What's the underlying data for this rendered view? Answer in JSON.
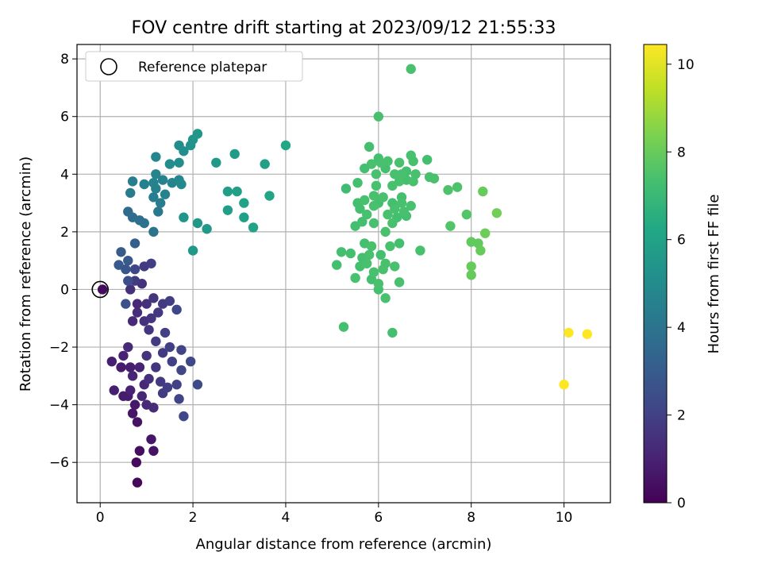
{
  "chart_data": {
    "type": "scatter",
    "title": "FOV centre drift starting at 2023/09/12 21:55:33",
    "xlabel": "Angular distance from reference (arcmin)",
    "ylabel": "Rotation from reference (arcmin)",
    "xlim": [
      -0.5,
      11.0
    ],
    "ylim": [
      -7.4,
      8.5
    ],
    "xticks": [
      0,
      2,
      4,
      6,
      8,
      10
    ],
    "xtick_labels": [
      "0",
      "2",
      "4",
      "6",
      "8",
      "10"
    ],
    "yticks": [
      -6,
      -4,
      -2,
      0,
      2,
      4,
      6,
      8
    ],
    "ytick_labels": [
      "−6",
      "−4",
      "−2",
      "0",
      "2",
      "4",
      "6",
      "8"
    ],
    "grid": true,
    "legend": {
      "placement": "top-left",
      "entries": [
        "Reference platepar"
      ]
    },
    "reference_point": {
      "x": 0,
      "y": 0
    },
    "colorbar": {
      "label": "Hours from first FF file",
      "range": [
        0,
        10.45
      ],
      "ticks": [
        0,
        2,
        4,
        6,
        8,
        10
      ],
      "tick_labels": [
        "0",
        "2",
        "4",
        "6",
        "8",
        "10"
      ],
      "colormap": "viridis"
    },
    "points": [
      {
        "x": 0.05,
        "y": 0.0,
        "c": 0.3
      },
      {
        "x": 0.8,
        "y": -6.7,
        "c": 0.2
      },
      {
        "x": 0.78,
        "y": -6.0,
        "c": 0.3
      },
      {
        "x": 0.85,
        "y": -5.6,
        "c": 0.4
      },
      {
        "x": 1.15,
        "y": -5.6,
        "c": 0.5
      },
      {
        "x": 1.1,
        "y": -5.2,
        "c": 0.6
      },
      {
        "x": 0.8,
        "y": -4.6,
        "c": 0.5
      },
      {
        "x": 0.7,
        "y": -4.3,
        "c": 0.6
      },
      {
        "x": 0.75,
        "y": -4.0,
        "c": 0.7
      },
      {
        "x": 0.6,
        "y": -3.7,
        "c": 0.8
      },
      {
        "x": 0.3,
        "y": -3.5,
        "c": 0.9
      },
      {
        "x": 0.5,
        "y": -3.7,
        "c": 0.8
      },
      {
        "x": 0.65,
        "y": -3.5,
        "c": 1.0
      },
      {
        "x": 0.9,
        "y": -3.7,
        "c": 1.1
      },
      {
        "x": 1.0,
        "y": -4.0,
        "c": 1.2
      },
      {
        "x": 1.15,
        "y": -4.1,
        "c": 1.3
      },
      {
        "x": 0.95,
        "y": -3.3,
        "c": 1.2
      },
      {
        "x": 1.05,
        "y": -3.1,
        "c": 1.4
      },
      {
        "x": 0.7,
        "y": -3.0,
        "c": 1.1
      },
      {
        "x": 0.85,
        "y": -2.7,
        "c": 1.0
      },
      {
        "x": 0.65,
        "y": -2.7,
        "c": 0.9
      },
      {
        "x": 0.45,
        "y": -2.7,
        "c": 0.8
      },
      {
        "x": 0.25,
        "y": -2.5,
        "c": 0.9
      },
      {
        "x": 0.5,
        "y": -2.3,
        "c": 1.0
      },
      {
        "x": 0.6,
        "y": -2.0,
        "c": 1.2
      },
      {
        "x": 1.0,
        "y": -2.3,
        "c": 1.5
      },
      {
        "x": 1.2,
        "y": -2.7,
        "c": 1.6
      },
      {
        "x": 1.3,
        "y": -3.2,
        "c": 1.7
      },
      {
        "x": 1.35,
        "y": -3.6,
        "c": 1.8
      },
      {
        "x": 1.45,
        "y": -3.4,
        "c": 1.9
      },
      {
        "x": 1.65,
        "y": -3.3,
        "c": 2.0
      },
      {
        "x": 1.7,
        "y": -3.8,
        "c": 2.1
      },
      {
        "x": 1.8,
        "y": -4.4,
        "c": 2.2
      },
      {
        "x": 2.1,
        "y": -3.3,
        "c": 2.4
      },
      {
        "x": 1.75,
        "y": -2.8,
        "c": 2.2
      },
      {
        "x": 1.55,
        "y": -2.5,
        "c": 2.0
      },
      {
        "x": 1.35,
        "y": -2.2,
        "c": 1.8
      },
      {
        "x": 1.5,
        "y": -2.0,
        "c": 1.9
      },
      {
        "x": 1.75,
        "y": -2.1,
        "c": 2.1
      },
      {
        "x": 1.95,
        "y": -2.5,
        "c": 2.3
      },
      {
        "x": 1.4,
        "y": -1.5,
        "c": 2.0
      },
      {
        "x": 1.2,
        "y": -1.8,
        "c": 1.8
      },
      {
        "x": 1.05,
        "y": -1.4,
        "c": 1.6
      },
      {
        "x": 0.95,
        "y": -1.1,
        "c": 1.5
      },
      {
        "x": 0.8,
        "y": -0.8,
        "c": 1.3
      },
      {
        "x": 0.7,
        "y": -1.1,
        "c": 1.2
      },
      {
        "x": 0.8,
        "y": -0.5,
        "c": 1.2
      },
      {
        "x": 1.0,
        "y": -0.5,
        "c": 1.4
      },
      {
        "x": 1.15,
        "y": -0.3,
        "c": 1.6
      },
      {
        "x": 1.35,
        "y": -0.5,
        "c": 1.8
      },
      {
        "x": 1.5,
        "y": -0.4,
        "c": 1.9
      },
      {
        "x": 1.65,
        "y": -0.7,
        "c": 2.2
      },
      {
        "x": 1.25,
        "y": -0.8,
        "c": 1.7
      },
      {
        "x": 1.1,
        "y": -1.0,
        "c": 1.6
      },
      {
        "x": 0.55,
        "y": -0.5,
        "c": 2.6
      },
      {
        "x": 0.65,
        "y": 0.0,
        "c": 1.4
      },
      {
        "x": 0.9,
        "y": 0.2,
        "c": 1.5
      },
      {
        "x": 0.75,
        "y": 0.3,
        "c": 1.8
      },
      {
        "x": 0.6,
        "y": 0.3,
        "c": 2.5
      },
      {
        "x": 0.55,
        "y": 0.7,
        "c": 2.8
      },
      {
        "x": 0.4,
        "y": 0.85,
        "c": 2.9
      },
      {
        "x": 0.75,
        "y": 0.7,
        "c": 2.2
      },
      {
        "x": 0.95,
        "y": 0.8,
        "c": 1.8
      },
      {
        "x": 1.1,
        "y": 0.9,
        "c": 1.9
      },
      {
        "x": 0.45,
        "y": 1.3,
        "c": 3.0
      },
      {
        "x": 0.6,
        "y": 1.0,
        "c": 2.9
      },
      {
        "x": 0.75,
        "y": 1.6,
        "c": 3.1
      },
      {
        "x": 0.6,
        "y": 2.7,
        "c": 3.6
      },
      {
        "x": 0.7,
        "y": 2.5,
        "c": 3.7
      },
      {
        "x": 0.85,
        "y": 2.4,
        "c": 3.8
      },
      {
        "x": 0.95,
        "y": 2.3,
        "c": 3.9
      },
      {
        "x": 1.15,
        "y": 2.0,
        "c": 4.0
      },
      {
        "x": 1.25,
        "y": 2.7,
        "c": 4.2
      },
      {
        "x": 1.3,
        "y": 3.0,
        "c": 4.3
      },
      {
        "x": 1.15,
        "y": 3.2,
        "c": 4.4
      },
      {
        "x": 1.2,
        "y": 3.5,
        "c": 4.5
      },
      {
        "x": 1.15,
        "y": 3.7,
        "c": 4.6
      },
      {
        "x": 1.2,
        "y": 4.0,
        "c": 4.7
      },
      {
        "x": 0.65,
        "y": 3.35,
        "c": 4.3
      },
      {
        "x": 0.7,
        "y": 3.75,
        "c": 4.4
      },
      {
        "x": 0.95,
        "y": 3.65,
        "c": 4.5
      },
      {
        "x": 1.35,
        "y": 3.8,
        "c": 4.6
      },
      {
        "x": 1.4,
        "y": 3.3,
        "c": 4.6
      },
      {
        "x": 1.55,
        "y": 3.7,
        "c": 4.7
      },
      {
        "x": 1.7,
        "y": 3.8,
        "c": 4.8
      },
      {
        "x": 1.75,
        "y": 3.65,
        "c": 4.9
      },
      {
        "x": 1.5,
        "y": 4.35,
        "c": 5.0
      },
      {
        "x": 1.7,
        "y": 4.4,
        "c": 5.0
      },
      {
        "x": 1.2,
        "y": 4.6,
        "c": 4.8
      },
      {
        "x": 1.7,
        "y": 5.0,
        "c": 5.1
      },
      {
        "x": 1.8,
        "y": 4.8,
        "c": 5.2
      },
      {
        "x": 1.95,
        "y": 5.0,
        "c": 5.3
      },
      {
        "x": 2.0,
        "y": 5.2,
        "c": 5.4
      },
      {
        "x": 2.1,
        "y": 5.4,
        "c": 5.5
      },
      {
        "x": 1.8,
        "y": 2.5,
        "c": 5.4
      },
      {
        "x": 2.1,
        "y": 2.3,
        "c": 5.5
      },
      {
        "x": 2.3,
        "y": 2.1,
        "c": 5.6
      },
      {
        "x": 2.0,
        "y": 1.35,
        "c": 5.6
      },
      {
        "x": 2.5,
        "y": 4.4,
        "c": 5.6
      },
      {
        "x": 2.9,
        "y": 4.7,
        "c": 5.7
      },
      {
        "x": 2.75,
        "y": 3.4,
        "c": 5.8
      },
      {
        "x": 2.95,
        "y": 3.4,
        "c": 5.9
      },
      {
        "x": 2.75,
        "y": 2.75,
        "c": 5.8
      },
      {
        "x": 3.1,
        "y": 3.0,
        "c": 6.0
      },
      {
        "x": 3.1,
        "y": 2.5,
        "c": 5.9
      },
      {
        "x": 3.3,
        "y": 2.15,
        "c": 6.0
      },
      {
        "x": 3.55,
        "y": 4.35,
        "c": 5.9
      },
      {
        "x": 3.65,
        "y": 3.25,
        "c": 6.1
      },
      {
        "x": 4.0,
        "y": 5.0,
        "c": 6.2
      },
      {
        "x": 5.1,
        "y": 0.85,
        "c": 7.3
      },
      {
        "x": 5.2,
        "y": 1.3,
        "c": 7.3
      },
      {
        "x": 5.4,
        "y": 1.25,
        "c": 7.3
      },
      {
        "x": 5.3,
        "y": 3.5,
        "c": 7.2
      },
      {
        "x": 5.25,
        "y": -1.3,
        "c": 7.3
      },
      {
        "x": 5.5,
        "y": 0.4,
        "c": 7.4
      },
      {
        "x": 5.6,
        "y": 0.8,
        "c": 7.3
      },
      {
        "x": 5.75,
        "y": 0.9,
        "c": 7.4
      },
      {
        "x": 5.65,
        "y": 1.1,
        "c": 7.3
      },
      {
        "x": 5.8,
        "y": 1.2,
        "c": 7.4
      },
      {
        "x": 5.7,
        "y": 1.6,
        "c": 7.3
      },
      {
        "x": 5.85,
        "y": 1.5,
        "c": 7.4
      },
      {
        "x": 5.9,
        "y": 0.6,
        "c": 7.4
      },
      {
        "x": 5.85,
        "y": 0.35,
        "c": 7.3
      },
      {
        "x": 6.0,
        "y": 0.2,
        "c": 7.4
      },
      {
        "x": 6.0,
        "y": 0.0,
        "c": 7.3
      },
      {
        "x": 6.15,
        "y": -0.3,
        "c": 7.4
      },
      {
        "x": 6.3,
        "y": -1.5,
        "c": 7.3
      },
      {
        "x": 6.1,
        "y": 0.7,
        "c": 7.4
      },
      {
        "x": 6.15,
        "y": 0.9,
        "c": 7.4
      },
      {
        "x": 6.35,
        "y": 0.8,
        "c": 7.4
      },
      {
        "x": 6.45,
        "y": 0.25,
        "c": 7.4
      },
      {
        "x": 6.05,
        "y": 1.2,
        "c": 7.3
      },
      {
        "x": 6.25,
        "y": 1.5,
        "c": 7.4
      },
      {
        "x": 6.45,
        "y": 1.6,
        "c": 7.3
      },
      {
        "x": 6.15,
        "y": 2.0,
        "c": 7.4
      },
      {
        "x": 5.5,
        "y": 2.2,
        "c": 7.3
      },
      {
        "x": 5.65,
        "y": 2.35,
        "c": 7.3
      },
      {
        "x": 5.9,
        "y": 2.3,
        "c": 7.4
      },
      {
        "x": 5.75,
        "y": 2.6,
        "c": 7.4
      },
      {
        "x": 5.6,
        "y": 2.8,
        "c": 7.3
      },
      {
        "x": 5.9,
        "y": 2.9,
        "c": 7.4
      },
      {
        "x": 5.55,
        "y": 3.0,
        "c": 7.3
      },
      {
        "x": 5.7,
        "y": 3.1,
        "c": 7.4
      },
      {
        "x": 5.9,
        "y": 3.25,
        "c": 7.4
      },
      {
        "x": 6.0,
        "y": 3.0,
        "c": 7.3
      },
      {
        "x": 6.1,
        "y": 3.2,
        "c": 7.4
      },
      {
        "x": 6.2,
        "y": 2.6,
        "c": 7.4
      },
      {
        "x": 6.35,
        "y": 2.8,
        "c": 7.4
      },
      {
        "x": 6.4,
        "y": 2.5,
        "c": 7.3
      },
      {
        "x": 6.3,
        "y": 2.3,
        "c": 7.4
      },
      {
        "x": 6.55,
        "y": 2.7,
        "c": 7.4
      },
      {
        "x": 6.6,
        "y": 2.55,
        "c": 7.3
      },
      {
        "x": 6.7,
        "y": 2.9,
        "c": 7.4
      },
      {
        "x": 6.5,
        "y": 3.0,
        "c": 7.4
      },
      {
        "x": 6.5,
        "y": 3.2,
        "c": 7.3
      },
      {
        "x": 6.3,
        "y": 3.6,
        "c": 7.4
      },
      {
        "x": 6.45,
        "y": 3.75,
        "c": 7.4
      },
      {
        "x": 6.6,
        "y": 3.8,
        "c": 7.3
      },
      {
        "x": 6.75,
        "y": 3.75,
        "c": 7.4
      },
      {
        "x": 6.8,
        "y": 4.0,
        "c": 7.4
      },
      {
        "x": 6.6,
        "y": 4.1,
        "c": 7.3
      },
      {
        "x": 6.5,
        "y": 4.0,
        "c": 7.4
      },
      {
        "x": 6.35,
        "y": 4.0,
        "c": 7.4
      },
      {
        "x": 6.15,
        "y": 4.2,
        "c": 7.3
      },
      {
        "x": 6.05,
        "y": 4.4,
        "c": 7.4
      },
      {
        "x": 5.85,
        "y": 4.35,
        "c": 7.4
      },
      {
        "x": 5.7,
        "y": 4.2,
        "c": 7.3
      },
      {
        "x": 5.55,
        "y": 3.7,
        "c": 7.3
      },
      {
        "x": 5.95,
        "y": 3.6,
        "c": 7.4
      },
      {
        "x": 5.95,
        "y": 4.0,
        "c": 7.4
      },
      {
        "x": 6.0,
        "y": 4.55,
        "c": 7.3
      },
      {
        "x": 6.2,
        "y": 4.45,
        "c": 7.4
      },
      {
        "x": 6.45,
        "y": 4.4,
        "c": 7.4
      },
      {
        "x": 5.8,
        "y": 4.95,
        "c": 7.3
      },
      {
        "x": 6.7,
        "y": 4.65,
        "c": 7.4
      },
      {
        "x": 6.75,
        "y": 4.45,
        "c": 7.4
      },
      {
        "x": 7.05,
        "y": 4.5,
        "c": 7.3
      },
      {
        "x": 7.1,
        "y": 3.9,
        "c": 7.4
      },
      {
        "x": 7.2,
        "y": 3.85,
        "c": 7.4
      },
      {
        "x": 6.3,
        "y": 3.0,
        "c": 7.3
      },
      {
        "x": 6.0,
        "y": 6.0,
        "c": 7.4
      },
      {
        "x": 6.7,
        "y": 7.65,
        "c": 7.4
      },
      {
        "x": 6.9,
        "y": 1.35,
        "c": 7.4
      },
      {
        "x": 7.5,
        "y": 3.45,
        "c": 7.5
      },
      {
        "x": 7.7,
        "y": 3.55,
        "c": 7.5
      },
      {
        "x": 7.55,
        "y": 2.2,
        "c": 7.6
      },
      {
        "x": 7.9,
        "y": 2.6,
        "c": 7.6
      },
      {
        "x": 8.0,
        "y": 1.65,
        "c": 7.9
      },
      {
        "x": 8.15,
        "y": 1.6,
        "c": 7.9
      },
      {
        "x": 8.2,
        "y": 1.35,
        "c": 8.0
      },
      {
        "x": 8.3,
        "y": 1.95,
        "c": 8.1
      },
      {
        "x": 8.25,
        "y": 3.4,
        "c": 8.0
      },
      {
        "x": 8.55,
        "y": 2.65,
        "c": 8.2
      },
      {
        "x": 8.0,
        "y": 0.8,
        "c": 8.0
      },
      {
        "x": 8.0,
        "y": 0.5,
        "c": 8.0
      },
      {
        "x": 10.0,
        "y": -3.3,
        "c": 10.45
      },
      {
        "x": 10.1,
        "y": -1.5,
        "c": 10.45
      },
      {
        "x": 10.5,
        "y": -1.55,
        "c": 10.45
      }
    ]
  }
}
